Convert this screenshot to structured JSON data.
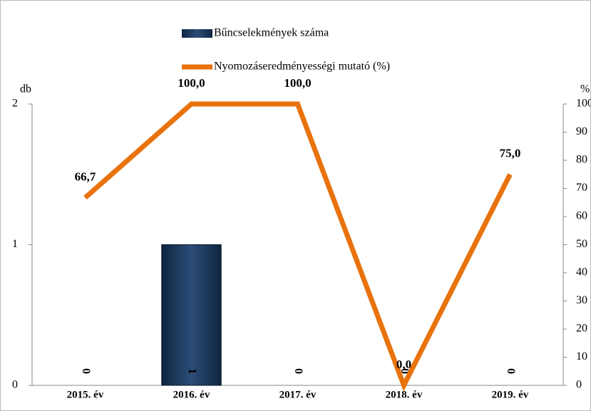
{
  "chart_data": {
    "type": "bar_line",
    "categories": [
      "2015. év",
      "2016. év",
      "2017. év",
      "2018. év",
      "2019. év"
    ],
    "ylabel": "db",
    "y2label": "%",
    "ylim": [
      0,
      2
    ],
    "yticks": [
      0,
      1,
      2
    ],
    "y2lim": [
      0,
      100
    ],
    "y2ticks": [
      0,
      10,
      20,
      30,
      40,
      50,
      60,
      70,
      80,
      90,
      100
    ],
    "legend": "top",
    "series": [
      {
        "name": "Bűncselekmények száma",
        "type": "bar",
        "color": "#1f3a60",
        "values": [
          0,
          1,
          0,
          0,
          0
        ]
      },
      {
        "name": "Nyomozáseredményességi mutató (%)",
        "type": "line",
        "axis": "y2",
        "color": "#e8720c",
        "values": [
          66.7,
          100,
          100,
          0,
          75
        ],
        "value_labels": [
          "66,7",
          "100,0",
          "100,0",
          "0,0",
          "75,0"
        ]
      }
    ]
  }
}
